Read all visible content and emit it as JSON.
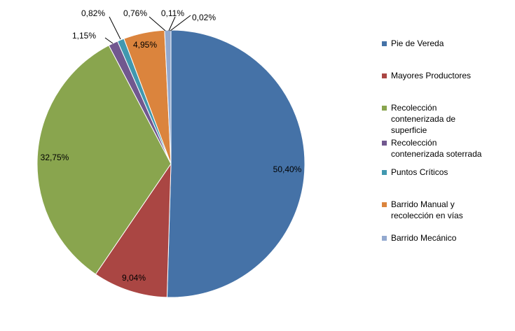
{
  "chart_data": {
    "type": "pie",
    "title": "",
    "legend_position": "right",
    "slices": [
      {
        "label": "Pie de Vereda",
        "value": 50.4,
        "display": "50,40%",
        "color": "#4572A7"
      },
      {
        "label": "Mayores Productores",
        "value": 9.04,
        "display": "9,04%",
        "color": "#AA4643"
      },
      {
        "label": "Recolección contenerizada de superficie",
        "value": 32.75,
        "display": "32,75%",
        "color": "#89A54E"
      },
      {
        "label": "Recolección contenerizada soterrada",
        "value": 1.15,
        "display": "1,15%",
        "color": "#71588F"
      },
      {
        "label": "Puntos Críticos",
        "value": 0.82,
        "display": "0,82%",
        "color": "#4198AF"
      },
      {
        "label": "Barrido Manual y recolección en vías",
        "value": 4.95,
        "display": "4,95%",
        "color": "#DB843D"
      },
      {
        "label": "Barrido Mecánico",
        "value": 0.76,
        "display": "0,76%",
        "color": "#93A9CF"
      }
    ],
    "extra_labels": [
      {
        "display": "0,11%"
      },
      {
        "display": "0,02%"
      }
    ],
    "legend": [
      {
        "text": "Pie de Vereda",
        "lines": [
          "Pie de Vereda"
        ],
        "color": "#4572A7"
      },
      {
        "text": "Mayores Productores",
        "lines": [
          "Mayores Productores"
        ],
        "color": "#AA4643"
      },
      {
        "text": "Recolección contenerizada de superficie",
        "lines": [
          "Recolección",
          "contenerizada de",
          "superficie"
        ],
        "color": "#89A54E"
      },
      {
        "text": "Recolección contenerizada soterrada",
        "lines": [
          "Recolección",
          "contenerizada soterrada"
        ],
        "color": "#71588F"
      },
      {
        "text": "Puntos Críticos",
        "lines": [
          "Puntos Críticos"
        ],
        "color": "#4198AF"
      },
      {
        "text": "Barrido Manual y recolección en vías",
        "lines": [
          "Barrido Manual y",
          "recolección en vías"
        ],
        "color": "#DB843D"
      },
      {
        "text": "Barrido Mecánico",
        "lines": [
          "Barrido Mecánico"
        ],
        "color": "#93A9CF"
      }
    ]
  }
}
